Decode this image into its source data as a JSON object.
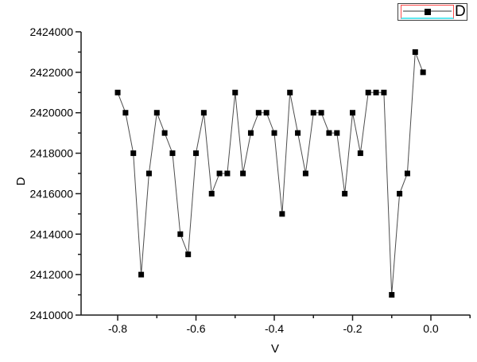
{
  "chart_data": {
    "type": "line",
    "title": "",
    "xlabel": "V",
    "ylabel": "D",
    "legend": {
      "label": "D",
      "position": "top-right"
    },
    "x": [
      -0.8,
      -0.78,
      -0.76,
      -0.74,
      -0.72,
      -0.7,
      -0.68,
      -0.66,
      -0.64,
      -0.62,
      -0.6,
      -0.58,
      -0.56,
      -0.54,
      -0.52,
      -0.5,
      -0.48,
      -0.46,
      -0.44,
      -0.42,
      -0.4,
      -0.38,
      -0.36,
      -0.34,
      -0.32,
      -0.3,
      -0.28,
      -0.26,
      -0.24,
      -0.22,
      -0.2,
      -0.18,
      -0.16,
      -0.14,
      -0.12,
      -0.1,
      -0.08,
      -0.06,
      -0.04,
      -0.02
    ],
    "series": [
      {
        "name": "D",
        "marker": "filled-square",
        "values": [
          2421000,
          2420000,
          2418000,
          2412000,
          2417000,
          2420000,
          2419000,
          2418000,
          2414000,
          2413000,
          2418000,
          2420000,
          2416000,
          2417000,
          2417000,
          2421000,
          2417000,
          2419000,
          2420000,
          2420000,
          2419000,
          2415000,
          2421000,
          2419000,
          2417000,
          2420000,
          2420000,
          2419000,
          2419000,
          2416000,
          2420000,
          2418000,
          2421000,
          2421000,
          2421000,
          2411000,
          2416000,
          2417000,
          2423000,
          2422000
        ]
      }
    ],
    "xlim": [
      -0.8935,
      0.0975
    ],
    "ylim": [
      2410000,
      2424000
    ],
    "x_major_ticks": {
      "values": [
        -0.8,
        -0.6,
        -0.4,
        -0.2,
        0.0
      ],
      "labels": [
        "-0.8",
        "-0.6",
        "-0.4",
        "-0.2",
        "0.0"
      ]
    },
    "x_minor_ticks": [
      -0.7,
      -0.5,
      -0.3,
      -0.1,
      0.1
    ],
    "y_major_ticks": {
      "values": [
        2410000,
        2412000,
        2414000,
        2416000,
        2418000,
        2420000,
        2422000,
        2424000
      ],
      "labels": [
        "2410000",
        "2412000",
        "2414000",
        "2416000",
        "2418000",
        "2420000",
        "2422000",
        "2424000"
      ]
    },
    "y_minor_ticks": [
      2411000,
      2413000,
      2415000,
      2417000,
      2419000,
      2421000,
      2423000
    ],
    "grid": false,
    "colors": {
      "marker": "#000000",
      "line": "#4d4d4d",
      "axis": "#1a1a1a",
      "text": "#000000",
      "legend_border": "#3f3f3f",
      "legend_sample_border": "#ff4d4d",
      "legend_underline": "#5fe8ef",
      "legend_sample_line": "#9a9a9a"
    }
  }
}
